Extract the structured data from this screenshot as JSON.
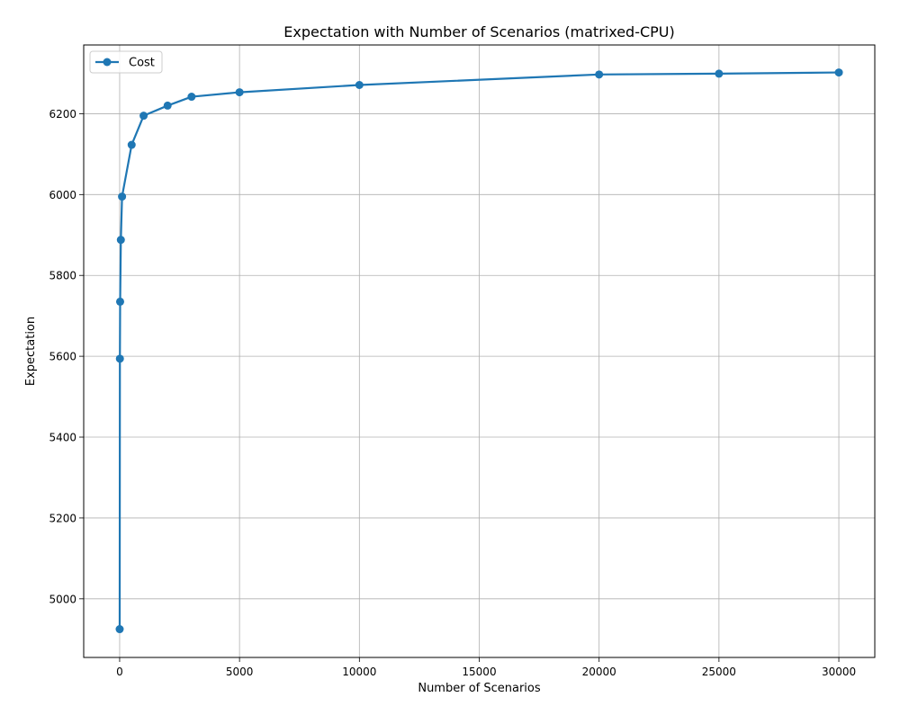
{
  "chart_data": {
    "type": "line",
    "title": "Expectation with Number of Scenarios (matrixed-CPU)",
    "xlabel": "Number of Scenarios",
    "ylabel": "Expectation",
    "xlim": [
      -1500,
      31500
    ],
    "ylim": [
      4855,
      6370
    ],
    "xticks": [
      0,
      5000,
      10000,
      15000,
      20000,
      25000,
      30000
    ],
    "yticks": [
      5000,
      5200,
      5400,
      5600,
      5800,
      6000,
      6200
    ],
    "grid": true,
    "legend_position": "upper-left",
    "series": [
      {
        "name": "Cost",
        "color": "#1f77b4",
        "marker": "circle",
        "x": [
          1,
          10,
          20,
          50,
          100,
          500,
          1000,
          2000,
          3000,
          5000,
          10000,
          20000,
          25000,
          30000
        ],
        "y": [
          4925,
          5594,
          5735,
          5888,
          5995,
          6123,
          6195,
          6220,
          6242,
          6253,
          6271,
          6297,
          6299,
          6302
        ]
      }
    ]
  }
}
